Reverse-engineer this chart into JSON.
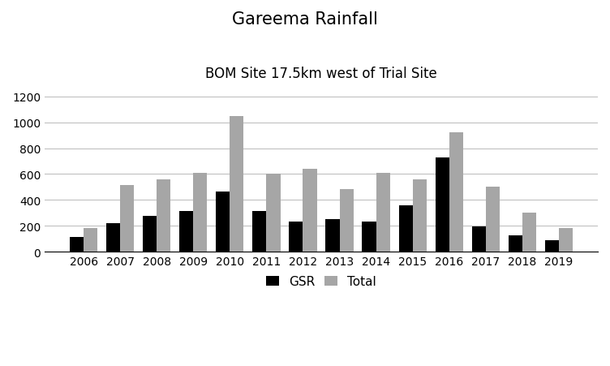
{
  "title": "Gareema Rainfall",
  "subtitle": "BOM Site 17.5km west of Trial Site",
  "years": [
    2006,
    2007,
    2008,
    2009,
    2010,
    2011,
    2012,
    2013,
    2014,
    2015,
    2016,
    2017,
    2018,
    2019
  ],
  "GSR": [
    115,
    220,
    275,
    315,
    465,
    315,
    230,
    250,
    230,
    355,
    730,
    195,
    125,
    85
  ],
  "Total": [
    185,
    515,
    560,
    610,
    1050,
    600,
    640,
    485,
    610,
    560,
    925,
    500,
    300,
    185
  ],
  "gsr_color": "#000000",
  "total_color": "#a6a6a6",
  "ylim": [
    0,
    1300
  ],
  "yticks": [
    0,
    200,
    400,
    600,
    800,
    1000,
    1200
  ],
  "bar_width": 0.38,
  "title_fontsize": 15,
  "subtitle_fontsize": 12,
  "tick_fontsize": 10,
  "legend_fontsize": 11,
  "background_color": "#ffffff",
  "grid_color": "#c0c0c0",
  "legend_labels": [
    "GSR",
    "Total"
  ]
}
